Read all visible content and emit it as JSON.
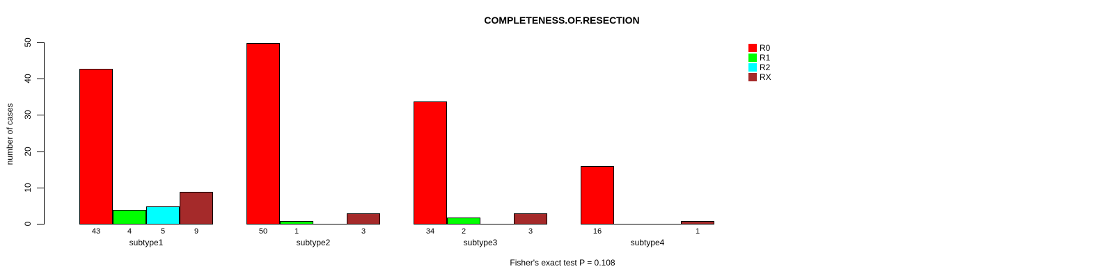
{
  "chart_data": {
    "type": "bar",
    "grouped": true,
    "title": "COMPLETENESS.OF.RESECTION",
    "ylabel": "number of cases",
    "xlabel": "",
    "categories": [
      "subtype1",
      "subtype2",
      "subtype3",
      "subtype4"
    ],
    "series": [
      {
        "name": "R0",
        "color": "#ff0000",
        "values": [
          43,
          50,
          34,
          16
        ]
      },
      {
        "name": "R1",
        "color": "#00ff00",
        "values": [
          4,
          1,
          2,
          0
        ]
      },
      {
        "name": "R2",
        "color": "#00ffff",
        "values": [
          5,
          0,
          0,
          0
        ]
      },
      {
        "name": "RX",
        "color": "#a52a2a",
        "values": [
          9,
          3,
          3,
          1
        ]
      }
    ],
    "ylim": [
      0,
      50
    ],
    "yticks": [
      0,
      10,
      20,
      30,
      40,
      50
    ],
    "bar_value_labels_shown_for_nonzero_only": true,
    "zero_bars_drawn_as_flat_line": true,
    "legend": {
      "position": "top-right",
      "entries": [
        "R0",
        "R1",
        "R2",
        "RX"
      ],
      "border": "none"
    },
    "annotation": "Fisher's exact test P = 0.108",
    "grid": false,
    "background": "#ffffff",
    "bar_border_color": "#000000",
    "axis_color": "#000000"
  }
}
